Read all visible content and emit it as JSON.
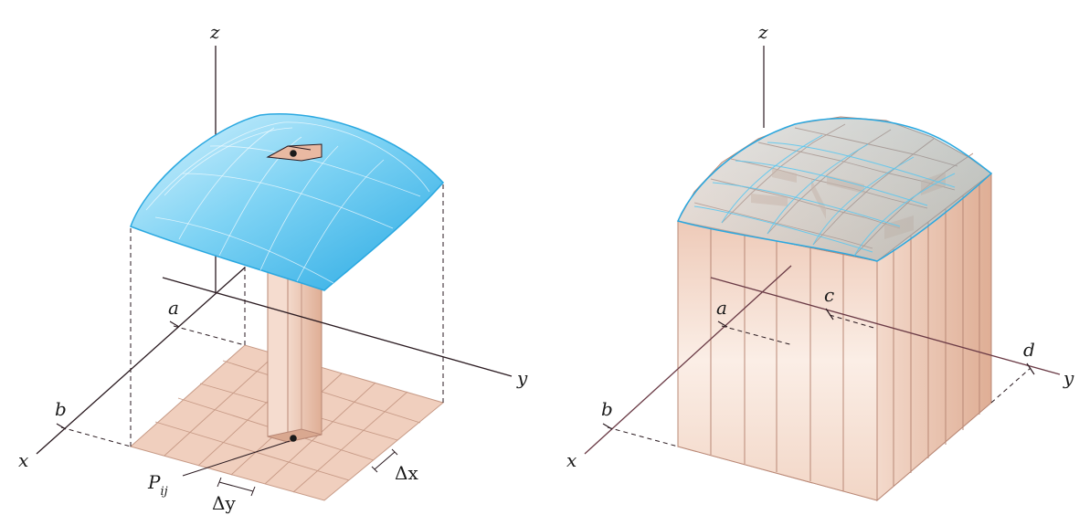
{
  "left_panel": {
    "axis_x": "x",
    "axis_y": "y",
    "axis_z": "z",
    "label_a": "a",
    "label_b": "b",
    "label_P": "P",
    "label_P_sub": "ij",
    "label_dx": "Δx",
    "label_dy": "Δy"
  },
  "right_panel": {
    "axis_x": "x",
    "axis_y": "y",
    "axis_z": "z",
    "label_a": "a",
    "label_b": "b",
    "label_c": "c",
    "label_d": "d"
  },
  "colors": {
    "surface_blue": "#5cc8f0",
    "surface_edge": "#2aa8e0",
    "column_tan": "#e9c3ae",
    "grid_base": "#f0cfbe",
    "axis": "#2a1a20"
  }
}
